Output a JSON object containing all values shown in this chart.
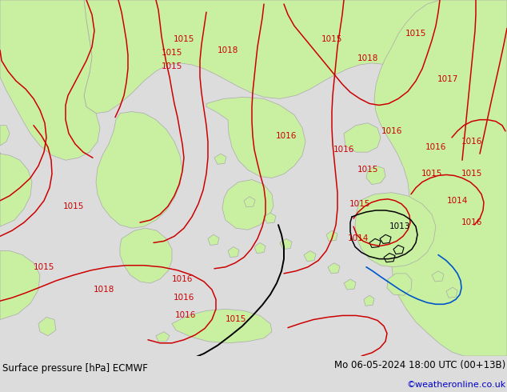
{
  "title_left": "Surface pressure [hPa] ECMWF",
  "title_right": "Mo 06-05-2024 18:00 UTC (00+13B)",
  "credit": "©weatheronline.co.uk",
  "bg_color": "#dcdcdc",
  "land_color": "#c8f0a0",
  "sea_color": "#dcdcdc",
  "contour_color_red": "#cc0000",
  "contour_color_blue": "#0055cc",
  "contour_color_black": "#000000",
  "border_color": "#aaaaaa",
  "footer_fontsize": 8.5,
  "credit_color": "#0000cc",
  "label_fontsize": 7.5
}
